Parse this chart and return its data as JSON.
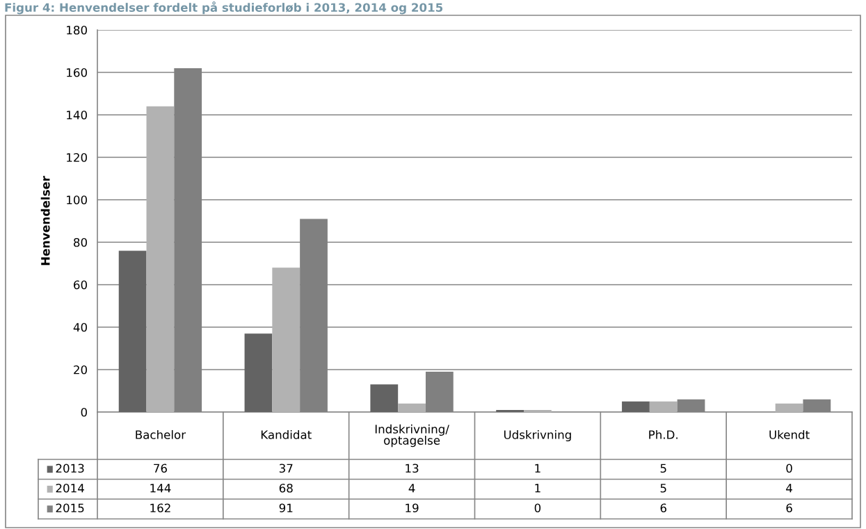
{
  "chart_data": {
    "type": "bar",
    "title": "Figur 4: Henvendelser fordelt på studieforløb i 2013, 2014 og 2015",
    "ylabel": "Henvendelser",
    "categories": [
      "Bachelor",
      "Kandidat",
      "Indskrivning/\noptagelse",
      "Udskrivning",
      "Ph.D.",
      "Ukendt"
    ],
    "series": [
      {
        "name": "2013",
        "color": "#636363",
        "values": [
          76,
          37,
          13,
          1,
          5,
          0
        ]
      },
      {
        "name": "2014",
        "color": "#b2b2b2",
        "values": [
          144,
          68,
          4,
          1,
          5,
          4
        ]
      },
      {
        "name": "2015",
        "color": "#808080",
        "values": [
          162,
          91,
          19,
          0,
          6,
          6
        ]
      }
    ],
    "ylim": [
      0,
      180
    ],
    "yticks": [
      0,
      20,
      40,
      60,
      80,
      100,
      120,
      140,
      160,
      180
    ],
    "grid": "y",
    "legend": "bottom",
    "data_labels": true
  }
}
